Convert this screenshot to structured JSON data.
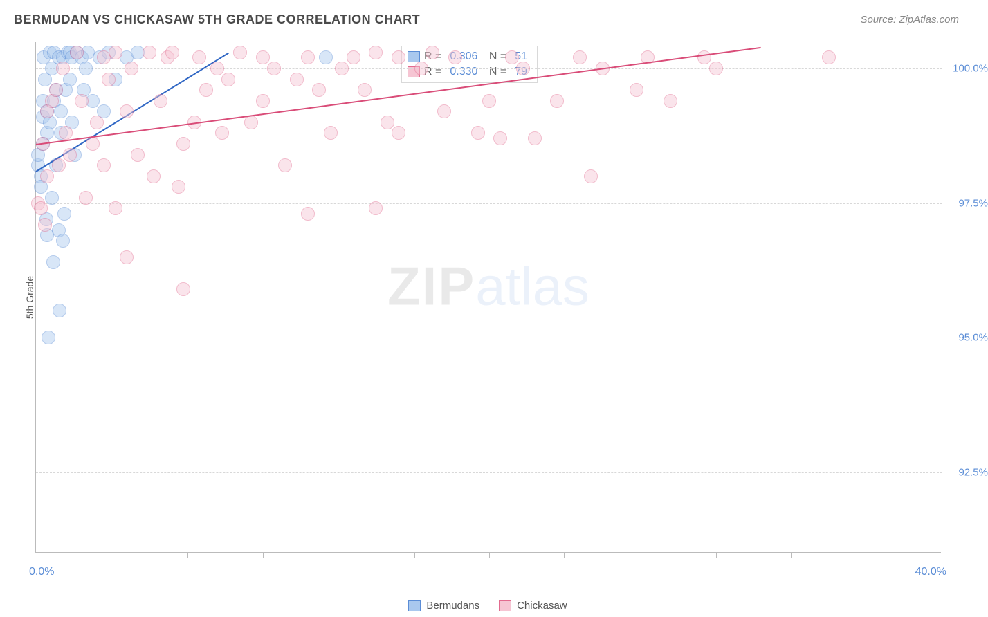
{
  "title": "BERMUDAN VS CHICKASAW 5TH GRADE CORRELATION CHART",
  "source": "Source: ZipAtlas.com",
  "ylabel": "5th Grade",
  "watermark": {
    "left": "ZIP",
    "right": "atlas"
  },
  "chart": {
    "type": "scatter",
    "background_color": "#ffffff",
    "grid_color": "#d8d8d8",
    "axis_color": "#bbbbbb",
    "title_fontsize": 18,
    "label_fontsize": 14,
    "tick_fontsize": 15,
    "tick_color": "#5b8dd6",
    "xlim": [
      0,
      40
    ],
    "ylim": [
      91,
      100.5
    ],
    "xticks_major": [
      0,
      40
    ],
    "xtick_labels": [
      "0.0%",
      "40.0%"
    ],
    "xticks_minor": [
      3.3,
      6.7,
      10,
      13.3,
      16.7,
      20,
      23.3,
      26.7,
      30,
      33.3,
      36.7
    ],
    "yticks": [
      92.5,
      95.0,
      97.5,
      100.0
    ],
    "ytick_labels": [
      "92.5%",
      "95.0%",
      "97.5%",
      "100.0%"
    ],
    "marker_radius": 10,
    "marker_opacity": 0.45,
    "series": [
      {
        "name": "Bermudans",
        "fill_color": "#a9c8ee",
        "stroke_color": "#5b8dd6",
        "line_color": "#2f66c4",
        "line_width": 2,
        "R": "0.306",
        "N": "51",
        "trend": {
          "x1": 0,
          "y1": 98.1,
          "x2": 8.5,
          "y2": 100.3
        },
        "points": [
          [
            0.1,
            98.2
          ],
          [
            0.1,
            98.4
          ],
          [
            0.2,
            98.0
          ],
          [
            0.2,
            97.8
          ],
          [
            0.3,
            98.6
          ],
          [
            0.3,
            99.4
          ],
          [
            0.3,
            99.1
          ],
          [
            0.35,
            100.2
          ],
          [
            0.4,
            99.8
          ],
          [
            0.45,
            97.2
          ],
          [
            0.5,
            99.2
          ],
          [
            0.5,
            98.8
          ],
          [
            0.5,
            96.9
          ],
          [
            0.55,
            95.0
          ],
          [
            0.6,
            99.0
          ],
          [
            0.6,
            100.3
          ],
          [
            0.7,
            100.0
          ],
          [
            0.7,
            97.6
          ],
          [
            0.75,
            96.4
          ],
          [
            0.8,
            99.4
          ],
          [
            0.8,
            100.3
          ],
          [
            0.9,
            98.2
          ],
          [
            0.9,
            99.6
          ],
          [
            1.0,
            100.2
          ],
          [
            1.0,
            97.0
          ],
          [
            1.05,
            95.5
          ],
          [
            1.1,
            99.2
          ],
          [
            1.1,
            98.8
          ],
          [
            1.2,
            100.2
          ],
          [
            1.2,
            96.8
          ],
          [
            1.25,
            97.3
          ],
          [
            1.3,
            99.6
          ],
          [
            1.4,
            100.3
          ],
          [
            1.5,
            99.8
          ],
          [
            1.5,
            100.3
          ],
          [
            1.6,
            99.0
          ],
          [
            1.6,
            100.2
          ],
          [
            1.7,
            98.4
          ],
          [
            1.8,
            100.3
          ],
          [
            2.0,
            100.2
          ],
          [
            2.1,
            99.6
          ],
          [
            2.2,
            100.0
          ],
          [
            2.3,
            100.3
          ],
          [
            2.5,
            99.4
          ],
          [
            2.8,
            100.2
          ],
          [
            3.0,
            99.2
          ],
          [
            3.2,
            100.3
          ],
          [
            3.5,
            99.8
          ],
          [
            4.0,
            100.2
          ],
          [
            4.5,
            100.3
          ],
          [
            12.8,
            100.2
          ]
        ]
      },
      {
        "name": "Chickasaw",
        "fill_color": "#f6c5d3",
        "stroke_color": "#e26b8f",
        "line_color": "#d94c78",
        "line_width": 2,
        "R": "0.330",
        "N": "79",
        "trend": {
          "x1": 0,
          "y1": 98.6,
          "x2": 32,
          "y2": 100.4
        },
        "points": [
          [
            0.1,
            97.5
          ],
          [
            0.2,
            97.4
          ],
          [
            0.3,
            98.6
          ],
          [
            0.4,
            97.1
          ],
          [
            0.5,
            99.2
          ],
          [
            0.5,
            98.0
          ],
          [
            0.7,
            99.4
          ],
          [
            0.9,
            99.6
          ],
          [
            1.0,
            98.2
          ],
          [
            1.2,
            100.0
          ],
          [
            1.3,
            98.8
          ],
          [
            1.5,
            98.4
          ],
          [
            1.8,
            100.3
          ],
          [
            2.0,
            99.4
          ],
          [
            2.2,
            97.6
          ],
          [
            2.5,
            98.6
          ],
          [
            2.7,
            99.0
          ],
          [
            3.0,
            100.2
          ],
          [
            3.0,
            98.2
          ],
          [
            3.2,
            99.8
          ],
          [
            3.5,
            100.3
          ],
          [
            3.5,
            97.4
          ],
          [
            4.0,
            96.5
          ],
          [
            4.0,
            99.2
          ],
          [
            4.2,
            100.0
          ],
          [
            4.5,
            98.4
          ],
          [
            5.0,
            100.3
          ],
          [
            5.2,
            98.0
          ],
          [
            5.5,
            99.4
          ],
          [
            5.8,
            100.2
          ],
          [
            6.0,
            100.3
          ],
          [
            6.3,
            97.8
          ],
          [
            6.5,
            98.6
          ],
          [
            6.5,
            95.9
          ],
          [
            7.0,
            99.0
          ],
          [
            7.2,
            100.2
          ],
          [
            7.5,
            99.6
          ],
          [
            8.0,
            100.0
          ],
          [
            8.2,
            98.8
          ],
          [
            8.5,
            99.8
          ],
          [
            9.0,
            100.3
          ],
          [
            9.5,
            99.0
          ],
          [
            10.0,
            100.2
          ],
          [
            10.0,
            99.4
          ],
          [
            10.5,
            100.0
          ],
          [
            11.0,
            98.2
          ],
          [
            11.5,
            99.8
          ],
          [
            12.0,
            97.3
          ],
          [
            12.0,
            100.2
          ],
          [
            12.5,
            99.6
          ],
          [
            13.0,
            98.8
          ],
          [
            13.5,
            100.0
          ],
          [
            14.0,
            100.2
          ],
          [
            14.5,
            99.6
          ],
          [
            15.0,
            97.4
          ],
          [
            15.0,
            100.3
          ],
          [
            15.5,
            99.0
          ],
          [
            16.0,
            100.2
          ],
          [
            16.0,
            98.8
          ],
          [
            17.0,
            100.0
          ],
          [
            17.5,
            100.3
          ],
          [
            18.0,
            99.2
          ],
          [
            18.5,
            100.2
          ],
          [
            19.5,
            98.8
          ],
          [
            20.0,
            99.4
          ],
          [
            20.5,
            98.7
          ],
          [
            21.0,
            100.2
          ],
          [
            21.5,
            100.0
          ],
          [
            22.0,
            98.7
          ],
          [
            23.0,
            99.4
          ],
          [
            24.0,
            100.2
          ],
          [
            24.5,
            98.0
          ],
          [
            25.0,
            100.0
          ],
          [
            26.5,
            99.6
          ],
          [
            27.0,
            100.2
          ],
          [
            28.0,
            99.4
          ],
          [
            29.5,
            100.2
          ],
          [
            30.0,
            100.0
          ],
          [
            35.0,
            100.2
          ]
        ]
      }
    ]
  },
  "legend": [
    {
      "label": "Bermudans",
      "fill": "#a9c8ee",
      "stroke": "#5b8dd6"
    },
    {
      "label": "Chickasaw",
      "fill": "#f6c5d3",
      "stroke": "#e26b8f"
    }
  ]
}
